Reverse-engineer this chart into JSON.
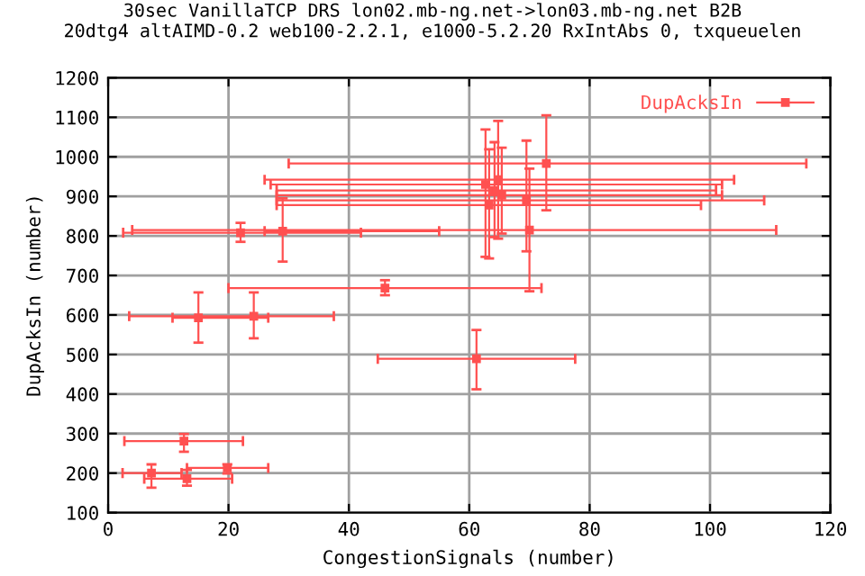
{
  "chart_data": {
    "type": "scatter",
    "title": "30sec VanillaTCP DRS lon02.mb-ng.net->lon03.mb-ng.net B2B\n20dtg4 altAIMD-0.2 web100-2.2.1, e1000-5.2.20 RxIntAbs 0, txqueuelen",
    "xlabel": "CongestionSignals (number)",
    "ylabel": "DupAcksIn (number)",
    "xlim": [
      0,
      120
    ],
    "ylim": [
      100,
      1200
    ],
    "xticks": [
      0,
      20,
      40,
      60,
      80,
      100,
      120
    ],
    "yticks": [
      100,
      200,
      300,
      400,
      500,
      600,
      700,
      800,
      900,
      1000,
      1100,
      1200
    ],
    "grid": true,
    "legend": "top right",
    "marker": "square",
    "series": [
      {
        "name": "DupAcksIn",
        "color": "#ff5050",
        "x": [
          72.8,
          62.7,
          63.3,
          64.2,
          64.8,
          65.4,
          69.5,
          70,
          29,
          22,
          46,
          15,
          24.2,
          61.2,
          12.6,
          7.2,
          13.1,
          19.8
        ],
        "values": [
          983,
          930,
          878,
          915,
          942,
          903,
          890,
          815,
          812,
          808,
          668,
          593,
          597,
          489,
          281,
          200,
          186,
          213
        ],
        "errors": [
          [
            865,
            1105
          ],
          [
            747,
            1069
          ],
          [
            743,
            1019
          ],
          [
            797,
            1037
          ],
          [
            793,
            1091
          ],
          [
            806,
            1023
          ],
          [
            761,
            1041
          ],
          [
            660,
            970
          ],
          [
            735,
            895
          ],
          [
            785,
            833
          ],
          [
            650,
            688
          ],
          [
            530,
            657
          ],
          [
            541,
            657
          ],
          [
            412,
            562
          ],
          [
            254,
            299
          ],
          [
            163,
            222
          ],
          [
            168,
            208
          ],
          [
            199,
            222
          ]
        ],
        "xerrors": [
          [
            30,
            116
          ],
          [
            27,
            102
          ],
          [
            28,
            98.5
          ],
          [
            28,
            101
          ],
          [
            26,
            104
          ],
          [
            28,
            102
          ],
          [
            28,
            109
          ],
          [
            4,
            111
          ],
          [
            26,
            55
          ],
          [
            2.5,
            42
          ],
          [
            20,
            72
          ],
          [
            10.7,
            26.6
          ],
          [
            3.5,
            37.5
          ],
          [
            44.8,
            77.6
          ],
          [
            2.7,
            22.4
          ],
          [
            2.4,
            12.2
          ],
          [
            6,
            20.6
          ],
          [
            13.1,
            26.6
          ]
        ]
      }
    ]
  }
}
